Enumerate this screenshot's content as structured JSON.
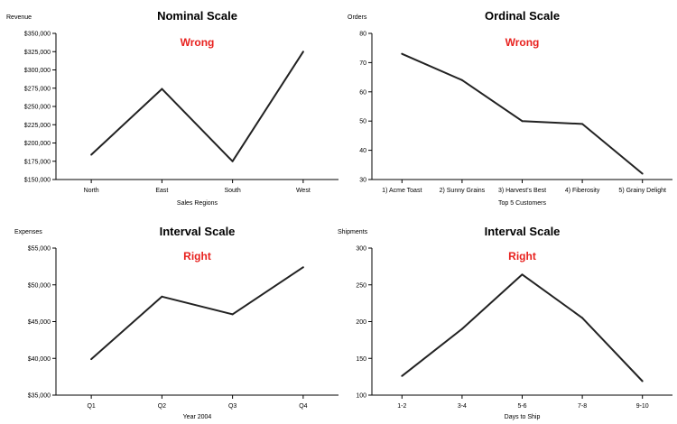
{
  "chart_data": [
    {
      "type": "line",
      "title": "Nominal Scale",
      "annotation": "Wrong",
      "ylabel": "Revenue",
      "xlabel": "Sales Regions",
      "categories": [
        "North",
        "East",
        "South",
        "West"
      ],
      "values": [
        184000,
        274000,
        175000,
        325000
      ],
      "ylim": [
        150000,
        350000
      ],
      "yticks": [
        150000,
        175000,
        200000,
        225000,
        250000,
        275000,
        300000,
        325000,
        350000
      ],
      "ytick_labels": [
        "$150,000",
        "$175,000",
        "$200,000",
        "$225,000",
        "$250,000",
        "$275,000",
        "$300,000",
        "$325,000",
        "$350,000"
      ],
      "grid": false
    },
    {
      "type": "line",
      "title": "Ordinal Scale",
      "annotation": "Wrong",
      "ylabel": "Orders",
      "xlabel": "Top 5 Customers",
      "categories": [
        "1) Acme Toast",
        "2) Sunny Grains",
        "3) Harvest's Best",
        "4) Fiberosity",
        "5) Grainy Delight"
      ],
      "values": [
        73,
        64,
        50,
        49,
        32
      ],
      "ylim": [
        30,
        80
      ],
      "yticks": [
        30,
        40,
        50,
        60,
        70,
        80
      ],
      "ytick_labels": [
        "30",
        "40",
        "50",
        "60",
        "70",
        "80"
      ],
      "grid": false
    },
    {
      "type": "line",
      "title": "Interval Scale",
      "annotation": "Right",
      "ylabel": "Expenses",
      "xlabel": "Year 2004",
      "categories": [
        "Q1",
        "Q2",
        "Q3",
        "Q4"
      ],
      "values": [
        39900,
        48400,
        46000,
        52400
      ],
      "ylim": [
        35000,
        55000
      ],
      "yticks": [
        35000,
        40000,
        45000,
        50000,
        55000
      ],
      "ytick_labels": [
        "$35,000",
        "$40,000",
        "$45,000",
        "$50,000",
        "$55,000"
      ],
      "grid": false
    },
    {
      "type": "line",
      "title": "Interval Scale",
      "annotation": "Right",
      "ylabel": "Shipments",
      "xlabel": "Days to Ship",
      "categories": [
        "1-2",
        "3-4",
        "5-6",
        "7-8",
        "9-10"
      ],
      "values": [
        126,
        190,
        264,
        205,
        119
      ],
      "ylim": [
        100,
        300
      ],
      "yticks": [
        100,
        150,
        200,
        250,
        300
      ],
      "ytick_labels": [
        "100",
        "150",
        "200",
        "250",
        "300"
      ],
      "grid": false
    }
  ]
}
